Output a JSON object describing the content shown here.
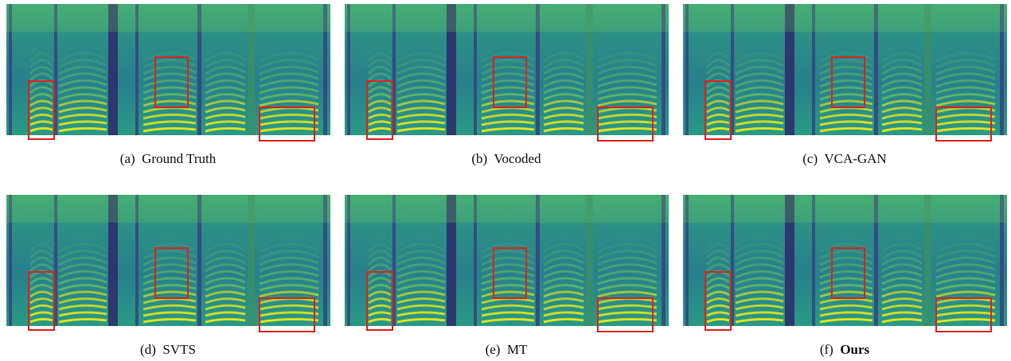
{
  "panels": [
    {
      "label": "(a)",
      "caption": "Ground Truth"
    },
    {
      "label": "(b)",
      "caption": "Vocoded"
    },
    {
      "label": "(c)",
      "caption": "VCA-GAN"
    },
    {
      "label": "(d)",
      "caption": "SVTS"
    },
    {
      "label": "(e)",
      "caption": "MT"
    },
    {
      "label": "(f)",
      "caption": "Ours",
      "emphasis": true
    }
  ]
}
